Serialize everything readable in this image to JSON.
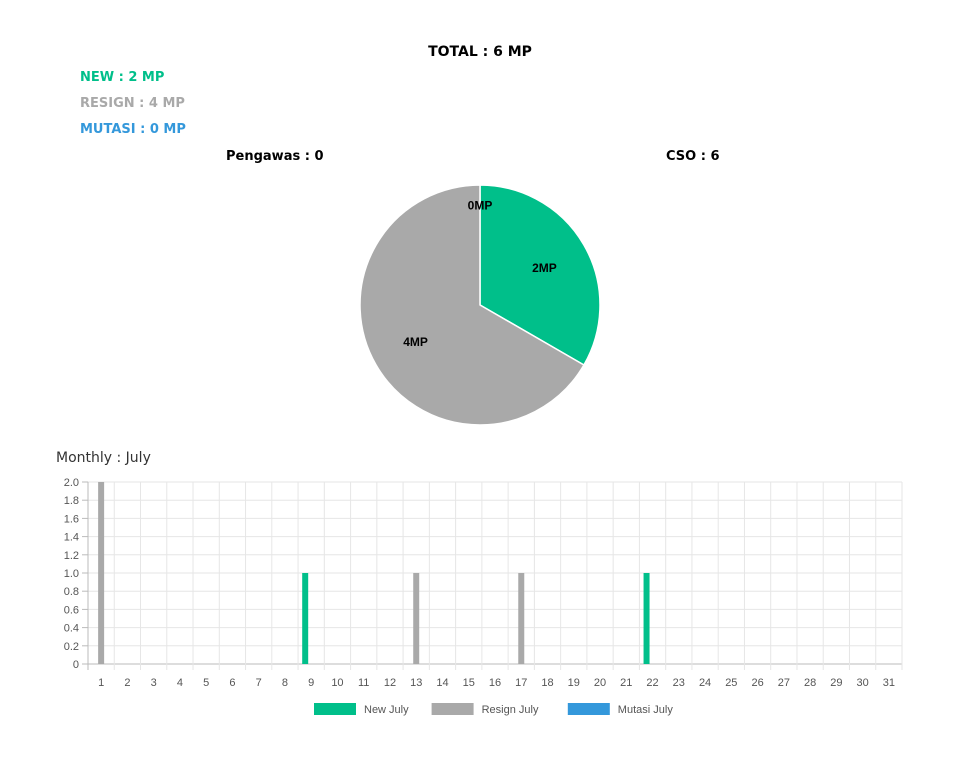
{
  "header": {
    "total": "TOTAL : 6 MP",
    "new": "NEW : 2 MP",
    "resign": "RESIGN : 4 MP",
    "mutasi": "MUTASI : 0 MP",
    "pengawas": "Pengawas : 0",
    "cso": "CSO : 6",
    "monthly": "Monthly : July"
  },
  "colors": {
    "new": "#00bf8a",
    "resign": "#a9a9a9",
    "mutasi": "#3498db"
  },
  "chart_data": [
    {
      "type": "pie",
      "labels": [
        "New",
        "Resign",
        "Mutasi"
      ],
      "values": [
        2,
        4,
        0
      ],
      "data_labels": [
        "2MP",
        "4MP",
        "0MP"
      ],
      "colors": [
        "#00bf8a",
        "#a9a9a9",
        "#3498db"
      ]
    },
    {
      "type": "bar",
      "title": "Monthly : July",
      "categories": [
        "1",
        "2",
        "3",
        "4",
        "5",
        "6",
        "7",
        "8",
        "9",
        "10",
        "11",
        "12",
        "13",
        "14",
        "15",
        "16",
        "17",
        "18",
        "19",
        "20",
        "21",
        "22",
        "23",
        "24",
        "25",
        "26",
        "27",
        "28",
        "29",
        "30",
        "31"
      ],
      "series": [
        {
          "name": "New July",
          "color": "#00bf8a",
          "values": [
            0,
            0,
            0,
            0,
            0,
            0,
            0,
            0,
            1,
            0,
            0,
            0,
            0,
            0,
            0,
            0,
            0,
            0,
            0,
            0,
            0,
            1,
            0,
            0,
            0,
            0,
            0,
            0,
            0,
            0,
            0
          ]
        },
        {
          "name": "Resign July",
          "color": "#a9a9a9",
          "values": [
            2,
            0,
            0,
            0,
            0,
            0,
            0,
            0,
            0,
            0,
            0,
            0,
            1,
            0,
            0,
            0,
            1,
            0,
            0,
            0,
            0,
            0,
            0,
            0,
            0,
            0,
            0,
            0,
            0,
            0,
            0
          ]
        },
        {
          "name": "Mutasi July",
          "color": "#3498db",
          "values": [
            0,
            0,
            0,
            0,
            0,
            0,
            0,
            0,
            0,
            0,
            0,
            0,
            0,
            0,
            0,
            0,
            0,
            0,
            0,
            0,
            0,
            0,
            0,
            0,
            0,
            0,
            0,
            0,
            0,
            0,
            0
          ]
        }
      ],
      "ylim": [
        0,
        2
      ],
      "yticks": [
        "0",
        "0.2",
        "0.4",
        "0.6",
        "0.8",
        "1.0",
        "1.2",
        "1.4",
        "1.6",
        "1.8",
        "2.0"
      ],
      "grid": true,
      "legend": "bottom"
    }
  ]
}
